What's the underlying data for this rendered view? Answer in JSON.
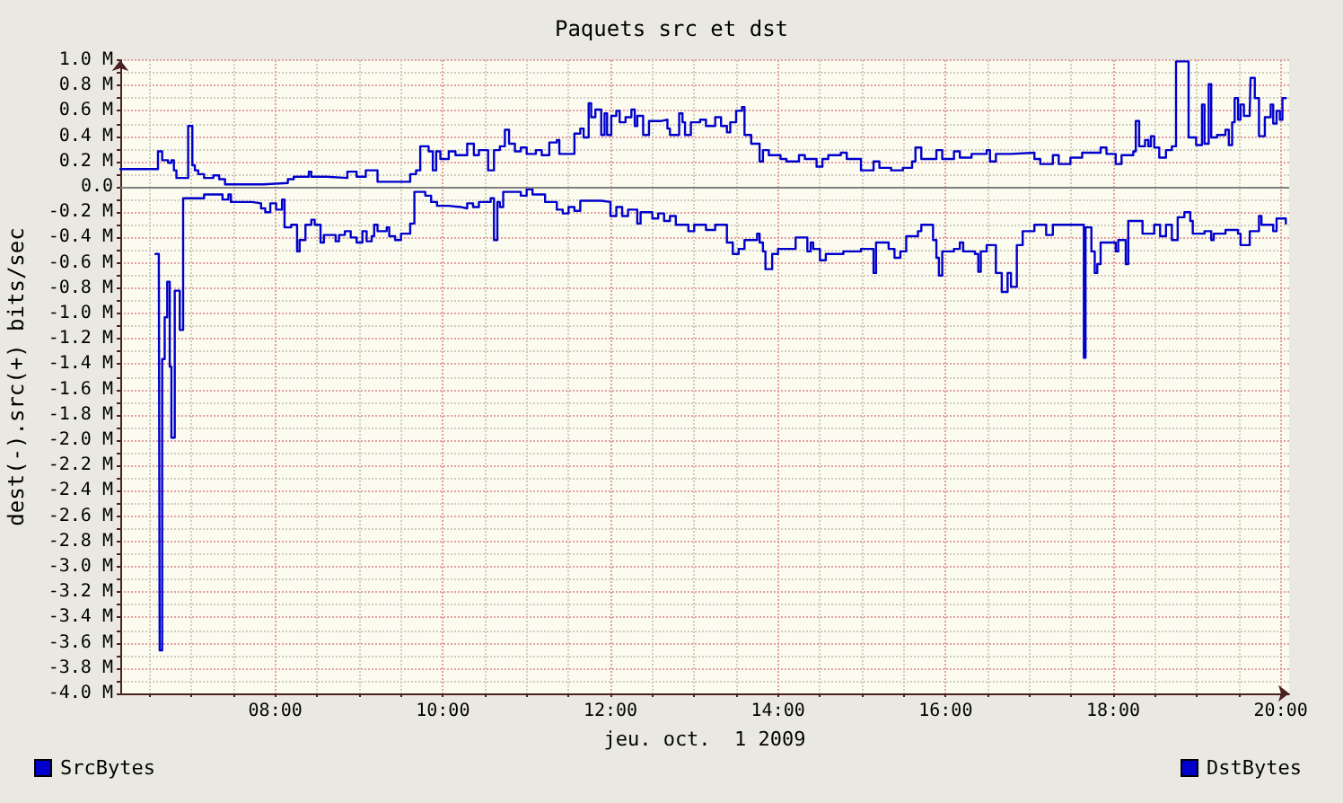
{
  "chart_data": {
    "type": "step",
    "title": "Paquets src et dst",
    "xlabel": "jeu. oct.  1 2009",
    "ylabel": "dest(-).src(+) bits/sec",
    "xlim": [
      6.15,
      20.1
    ],
    "ylim": [
      -4,
      1
    ],
    "xticks": [
      {
        "value": 6.5,
        "label": null
      },
      {
        "value": 7,
        "label": null
      },
      {
        "value": 7.5,
        "label": null
      },
      {
        "value": 8,
        "label": "08:00"
      },
      {
        "value": 8.5,
        "label": null
      },
      {
        "value": 9,
        "label": null
      },
      {
        "value": 9.5,
        "label": null
      },
      {
        "value": 10,
        "label": "10:00"
      },
      {
        "value": 10.5,
        "label": null
      },
      {
        "value": 11,
        "label": null
      },
      {
        "value": 11.5,
        "label": null
      },
      {
        "value": 12,
        "label": "12:00"
      },
      {
        "value": 12.5,
        "label": null
      },
      {
        "value": 13,
        "label": null
      },
      {
        "value": 13.5,
        "label": null
      },
      {
        "value": 14,
        "label": "14:00"
      },
      {
        "value": 14.5,
        "label": null
      },
      {
        "value": 15,
        "label": null
      },
      {
        "value": 15.5,
        "label": null
      },
      {
        "value": 16,
        "label": "16:00"
      },
      {
        "value": 16.5,
        "label": null
      },
      {
        "value": 17,
        "label": null
      },
      {
        "value": 17.5,
        "label": null
      },
      {
        "value": 18,
        "label": "18:00"
      },
      {
        "value": 18.5,
        "label": null
      },
      {
        "value": 19,
        "label": null
      },
      {
        "value": 19.5,
        "label": null
      },
      {
        "value": 20,
        "label": "20:00"
      }
    ],
    "yticks": [
      {
        "value": -4,
        "label": "-4.0 M"
      },
      {
        "value": -3.9,
        "label": null
      },
      {
        "value": -3.8,
        "label": "-3.8 M"
      },
      {
        "value": -3.7,
        "label": null
      },
      {
        "value": -3.6,
        "label": "-3.6 M"
      },
      {
        "value": -3.5,
        "label": null
      },
      {
        "value": -3.4,
        "label": "-3.4 M"
      },
      {
        "value": -3.3,
        "label": null
      },
      {
        "value": -3.2,
        "label": "-3.2 M"
      },
      {
        "value": -3.1,
        "label": null
      },
      {
        "value": -3,
        "label": "-3.0 M"
      },
      {
        "value": -2.9,
        "label": null
      },
      {
        "value": -2.8,
        "label": "-2.8 M"
      },
      {
        "value": -2.7,
        "label": null
      },
      {
        "value": -2.6,
        "label": "-2.6 M"
      },
      {
        "value": -2.5,
        "label": null
      },
      {
        "value": -2.4,
        "label": "-2.4 M"
      },
      {
        "value": -2.3,
        "label": null
      },
      {
        "value": -2.2,
        "label": "-2.2 M"
      },
      {
        "value": -2.1,
        "label": null
      },
      {
        "value": -2,
        "label": "-2.0 M"
      },
      {
        "value": -1.9,
        "label": null
      },
      {
        "value": -1.8,
        "label": "-1.8 M"
      },
      {
        "value": -1.7,
        "label": null
      },
      {
        "value": -1.6,
        "label": "-1.6 M"
      },
      {
        "value": -1.5,
        "label": null
      },
      {
        "value": -1.4,
        "label": "-1.4 M"
      },
      {
        "value": -1.3,
        "label": null
      },
      {
        "value": -1.2,
        "label": "-1.2 M"
      },
      {
        "value": -1.1,
        "label": null
      },
      {
        "value": -1,
        "label": "-1.0 M"
      },
      {
        "value": -0.9,
        "label": null
      },
      {
        "value": -0.8,
        "label": "-0.8 M"
      },
      {
        "value": -0.7,
        "label": null
      },
      {
        "value": -0.6,
        "label": "-0.6 M"
      },
      {
        "value": -0.5,
        "label": null
      },
      {
        "value": -0.4,
        "label": "-0.4 M"
      },
      {
        "value": -0.3,
        "label": null
      },
      {
        "value": -0.2,
        "label": "-0.2 M"
      },
      {
        "value": -0.1,
        "label": null
      },
      {
        "value": 0,
        "label": "0.0"
      },
      {
        "value": 0.1,
        "label": null
      },
      {
        "value": 0.2,
        "label": "0.2 M"
      },
      {
        "value": 0.3,
        "label": null
      },
      {
        "value": 0.4,
        "label": "0.4 M"
      },
      {
        "value": 0.5,
        "label": null
      },
      {
        "value": 0.6,
        "label": "0.6 M"
      },
      {
        "value": 0.7,
        "label": null
      },
      {
        "value": 0.8,
        "label": "0.8 M"
      },
      {
        "value": 0.9,
        "label": null
      },
      {
        "value": 1,
        "label": "1.0 M"
      }
    ],
    "grid": true,
    "legend": "bottom",
    "marker": "none",
    "line_style": "solid",
    "ref_lines": [
      {
        "axis": "y",
        "value": 0,
        "color": "#808080"
      }
    ],
    "series": [
      {
        "name": "SrcBytes",
        "color": "#0000cc",
        "x": [
          6.15,
          6.6,
          6.65,
          6.72,
          6.76,
          6.79,
          6.82,
          6.96,
          7.01,
          7.04,
          7.08,
          7.15,
          7.26,
          7.33,
          7.4,
          7.86,
          8.15,
          8.22,
          8.4,
          8.43,
          8.61,
          8.86,
          8.97,
          9.08,
          9.22,
          9.61,
          9.68,
          9.73,
          9.83,
          9.88,
          9.92,
          9.97,
          10.07,
          10.15,
          10.29,
          10.37,
          10.43,
          10.54,
          10.61,
          10.68,
          10.74,
          10.79,
          10.86,
          10.93,
          11.0,
          11.11,
          11.18,
          11.27,
          11.36,
          11.39,
          11.57,
          11.64,
          11.68,
          11.74,
          11.77,
          11.82,
          11.89,
          11.93,
          11.96,
          12.01,
          12.07,
          12.11,
          12.18,
          12.25,
          12.29,
          12.32,
          12.39,
          12.46,
          12.61,
          12.68,
          12.71,
          12.82,
          12.86,
          12.89,
          12.96,
          13.07,
          13.14,
          13.25,
          13.32,
          13.39,
          13.43,
          13.5,
          13.57,
          13.6,
          13.68,
          13.78,
          13.82,
          13.89,
          14.03,
          14.1,
          14.25,
          14.32,
          14.46,
          14.53,
          14.6,
          14.75,
          14.82,
          14.99,
          15.14,
          15.21,
          15.35,
          15.49,
          15.6,
          15.64,
          15.71,
          15.89,
          15.96,
          16.1,
          16.17,
          16.31,
          16.49,
          16.53,
          16.6,
          16.78,
          17.06,
          17.13,
          17.28,
          17.35,
          17.49,
          17.63,
          17.78,
          17.85,
          17.92,
          18.03,
          18.1,
          18.24,
          18.27,
          18.31,
          18.38,
          18.42,
          18.45,
          18.49,
          18.55,
          18.63,
          18.7,
          18.75,
          18.9,
          18.99,
          19.06,
          19.09,
          19.14,
          19.17,
          19.24,
          19.34,
          19.38,
          19.42,
          19.45,
          19.49,
          19.52,
          19.56,
          19.63,
          19.64,
          19.69,
          19.74,
          19.81,
          19.88,
          19.91,
          19.95,
          19.99,
          20.02,
          20.06
        ],
        "values": [
          0.14,
          0.28,
          0.21,
          0.19,
          0.21,
          0.13,
          0.07,
          0.48,
          0.17,
          0.13,
          0.1,
          0.07,
          0.09,
          0.06,
          0.02,
          0.03,
          0.06,
          0.08,
          0.12,
          0.08,
          0.07,
          0.12,
          0.08,
          0.13,
          0.04,
          0.1,
          0.13,
          0.32,
          0.28,
          0.13,
          0.28,
          0.22,
          0.28,
          0.25,
          0.34,
          0.25,
          0.29,
          0.13,
          0.29,
          0.32,
          0.45,
          0.34,
          0.28,
          0.31,
          0.26,
          0.29,
          0.25,
          0.35,
          0.37,
          0.26,
          0.42,
          0.46,
          0.39,
          0.66,
          0.55,
          0.61,
          0.41,
          0.58,
          0.41,
          0.56,
          0.6,
          0.51,
          0.55,
          0.61,
          0.48,
          0.56,
          0.41,
          0.52,
          0.53,
          0.46,
          0.41,
          0.58,
          0.51,
          0.41,
          0.51,
          0.53,
          0.48,
          0.55,
          0.48,
          0.43,
          0.51,
          0.6,
          0.63,
          0.41,
          0.34,
          0.2,
          0.29,
          0.25,
          0.22,
          0.2,
          0.25,
          0.22,
          0.16,
          0.22,
          0.25,
          0.27,
          0.22,
          0.13,
          0.2,
          0.15,
          0.13,
          0.15,
          0.2,
          0.31,
          0.22,
          0.29,
          0.22,
          0.28,
          0.23,
          0.26,
          0.29,
          0.2,
          0.26,
          0.27,
          0.22,
          0.18,
          0.25,
          0.18,
          0.23,
          0.27,
          0.27,
          0.31,
          0.26,
          0.18,
          0.25,
          0.28,
          0.52,
          0.32,
          0.37,
          0.32,
          0.4,
          0.31,
          0.23,
          0.29,
          0.32,
          0.99,
          0.39,
          0.33,
          0.65,
          0.34,
          0.81,
          0.39,
          0.41,
          0.45,
          0.33,
          0.51,
          0.7,
          0.53,
          0.65,
          0.56,
          0.61,
          0.86,
          0.7,
          0.4,
          0.55,
          0.65,
          0.5,
          0.6,
          0.53,
          0.7,
          0.7
        ]
      },
      {
        "name": "DstBytes",
        "color": "#0000cc",
        "x": [
          6.57,
          6.61,
          6.62,
          6.65,
          6.68,
          6.71,
          6.74,
          6.76,
          6.8,
          6.86,
          6.9,
          7.15,
          7.37,
          7.44,
          7.47,
          7.72,
          7.83,
          7.88,
          7.94,
          8.01,
          8.08,
          8.11,
          8.19,
          8.26,
          8.29,
          8.36,
          8.43,
          8.47,
          8.54,
          8.58,
          8.72,
          8.76,
          8.83,
          8.9,
          8.97,
          9.04,
          9.09,
          9.15,
          9.18,
          9.22,
          9.33,
          9.36,
          9.43,
          9.5,
          9.61,
          9.66,
          9.79,
          9.86,
          9.93,
          10.07,
          10.22,
          10.29,
          10.36,
          10.43,
          10.57,
          10.61,
          10.65,
          10.68,
          10.72,
          10.93,
          11.0,
          11.07,
          11.22,
          11.36,
          11.43,
          11.5,
          11.57,
          11.64,
          11.89,
          12.0,
          12.07,
          12.14,
          12.21,
          12.32,
          12.36,
          12.5,
          12.57,
          12.64,
          12.71,
          12.78,
          12.93,
          13.0,
          13.14,
          13.25,
          13.39,
          13.46,
          13.53,
          13.6,
          13.75,
          13.78,
          13.82,
          13.85,
          13.93,
          14.0,
          14.21,
          14.35,
          14.39,
          14.42,
          14.5,
          14.57,
          14.78,
          14.99,
          15.14,
          15.17,
          15.32,
          15.39,
          15.46,
          15.53,
          15.67,
          15.71,
          15.85,
          15.89,
          15.92,
          15.96,
          16.1,
          16.17,
          16.21,
          16.35,
          16.39,
          16.42,
          16.49,
          16.6,
          16.67,
          16.74,
          16.78,
          16.85,
          16.92,
          17.06,
          17.2,
          17.28,
          17.65,
          17.67,
          17.74,
          17.78,
          17.81,
          17.85,
          18.03,
          18.06,
          18.15,
          18.18,
          18.35,
          18.49,
          18.56,
          18.63,
          18.7,
          18.77,
          18.85,
          18.92,
          18.95,
          19.09,
          19.17,
          19.2,
          19.34,
          19.49,
          19.52,
          19.63,
          19.74,
          19.77,
          19.91,
          19.95,
          20.06
        ],
        "values": [
          -0.53,
          -0.58,
          -3.66,
          -1.36,
          -1.03,
          -0.75,
          -1.42,
          -1.98,
          -0.82,
          -1.13,
          -0.09,
          -0.06,
          -0.1,
          -0.06,
          -0.12,
          -0.13,
          -0.17,
          -0.2,
          -0.13,
          -0.18,
          -0.1,
          -0.32,
          -0.3,
          -0.51,
          -0.42,
          -0.3,
          -0.26,
          -0.3,
          -0.44,
          -0.38,
          -0.43,
          -0.38,
          -0.35,
          -0.4,
          -0.44,
          -0.35,
          -0.43,
          -0.39,
          -0.3,
          -0.35,
          -0.32,
          -0.39,
          -0.42,
          -0.37,
          -0.29,
          -0.04,
          -0.07,
          -0.12,
          -0.15,
          -0.16,
          -0.17,
          -0.13,
          -0.16,
          -0.12,
          -0.09,
          -0.42,
          -0.12,
          -0.16,
          -0.04,
          -0.07,
          -0.02,
          -0.06,
          -0.12,
          -0.18,
          -0.21,
          -0.16,
          -0.19,
          -0.11,
          -0.12,
          -0.23,
          -0.16,
          -0.23,
          -0.18,
          -0.29,
          -0.2,
          -0.25,
          -0.21,
          -0.27,
          -0.23,
          -0.3,
          -0.35,
          -0.3,
          -0.34,
          -0.3,
          -0.44,
          -0.53,
          -0.49,
          -0.42,
          -0.37,
          -0.44,
          -0.51,
          -0.65,
          -0.53,
          -0.49,
          -0.4,
          -0.51,
          -0.44,
          -0.49,
          -0.58,
          -0.53,
          -0.51,
          -0.49,
          -0.68,
          -0.44,
          -0.49,
          -0.56,
          -0.51,
          -0.39,
          -0.35,
          -0.3,
          -0.42,
          -0.56,
          -0.7,
          -0.51,
          -0.49,
          -0.44,
          -0.51,
          -0.53,
          -0.67,
          -0.51,
          -0.46,
          -0.68,
          -0.83,
          -0.68,
          -0.79,
          -0.46,
          -0.35,
          -0.3,
          -0.38,
          -0.3,
          -1.35,
          -0.32,
          -0.51,
          -0.68,
          -0.61,
          -0.44,
          -0.51,
          -0.42,
          -0.61,
          -0.27,
          -0.37,
          -0.3,
          -0.39,
          -0.3,
          -0.42,
          -0.24,
          -0.2,
          -0.27,
          -0.37,
          -0.35,
          -0.42,
          -0.37,
          -0.34,
          -0.37,
          -0.46,
          -0.35,
          -0.23,
          -0.3,
          -0.35,
          -0.25,
          -0.29
        ]
      }
    ]
  }
}
